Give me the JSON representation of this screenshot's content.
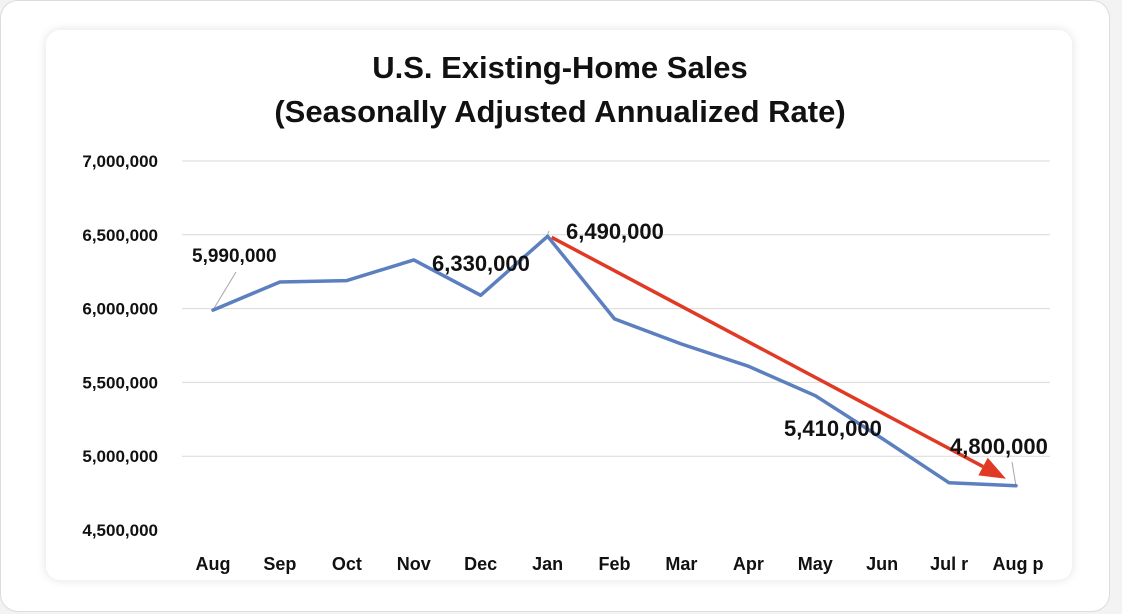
{
  "chart_data": {
    "type": "line",
    "title": "U.S. Existing-Home Sales",
    "subtitle": "(Seasonally Adjusted Annualized  Rate)",
    "xlabel": "",
    "ylabel": "",
    "categories": [
      "Aug",
      "Sep",
      "Oct",
      "Nov",
      "Dec",
      "Jan",
      "Feb",
      "Mar",
      "Apr",
      "May",
      "Jun",
      "Jul r",
      "Aug p"
    ],
    "series": [
      {
        "name": "Existing-Home Sales",
        "color": "#5b7fbf",
        "values": [
          5990000,
          6180000,
          6190000,
          6330000,
          6090000,
          6490000,
          5930000,
          5760000,
          5610000,
          5410000,
          5120000,
          4820000,
          4800000
        ]
      }
    ],
    "ylim": [
      4500000,
      7000000
    ],
    "yticks": [
      7000000,
      6500000,
      6000000,
      5500000,
      5000000,
      4500000
    ],
    "ytick_labels": [
      "7,000,000",
      "6,500,000",
      "6,000,000",
      "5,500,000",
      "5,000,000",
      "4,500,000"
    ],
    "grid": true,
    "data_labels": [
      {
        "index": 0,
        "text": "5,990,000"
      },
      {
        "index": 3,
        "text": "6,330,000"
      },
      {
        "index": 5,
        "text": "6,490,000"
      },
      {
        "index": 9,
        "text": "5,410,000"
      },
      {
        "index": 12,
        "text": "4,800,000"
      }
    ],
    "annotation_arrow": {
      "from_index": 5,
      "to_index": 12,
      "color": "#e03a25"
    }
  }
}
